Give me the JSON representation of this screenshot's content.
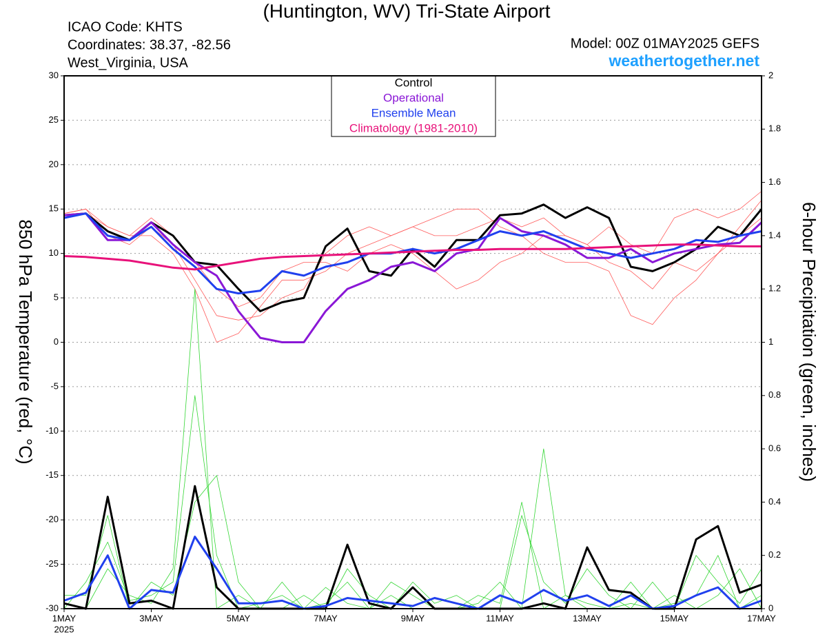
{
  "chart_data": {
    "type": "line",
    "title": "(Huntington, WV) Tri-State Airport",
    "annotations": [
      "ICAO Code: KHTS",
      "Coordinates: 38.37, -82.56",
      "West_Virginia, USA"
    ],
    "model": "Model: 00Z 01MAY2025 GEFS",
    "website": "weathertogether.net",
    "year_label": "2025",
    "ylabel": "850 hPa Temperature (red, °C)",
    "y2label": "6-hour Precipitation (green, inches)",
    "x": [
      1,
      1.5,
      2,
      2.5,
      3,
      3.5,
      4,
      4.5,
      5,
      5.5,
      6,
      6.5,
      7,
      7.5,
      8,
      8.5,
      9,
      9.5,
      10,
      10.5,
      11,
      11.5,
      12,
      12.5,
      13,
      13.5,
      14,
      14.5,
      15,
      15.5,
      16,
      16.5,
      17
    ],
    "xlim": [
      1,
      17
    ],
    "xticks": [
      {
        "value": 1,
        "label": "1MAY"
      },
      {
        "value": 3,
        "label": "3MAY"
      },
      {
        "value": 5,
        "label": "5MAY"
      },
      {
        "value": 7,
        "label": "7MAY"
      },
      {
        "value": 9,
        "label": "9MAY"
      },
      {
        "value": 11,
        "label": "11MAY"
      },
      {
        "value": 13,
        "label": "13MAY"
      },
      {
        "value": 15,
        "label": "15MAY"
      },
      {
        "value": 17,
        "label": "17MAY"
      }
    ],
    "ylim": [
      -30,
      30
    ],
    "yticks": [
      -30,
      -25,
      -20,
      -15,
      -10,
      -5,
      0,
      5,
      10,
      15,
      20,
      25,
      30
    ],
    "y2lim": [
      0,
      2
    ],
    "y2ticks": [
      0,
      0.2,
      0.4,
      0.6,
      0.8,
      1,
      1.2,
      1.4,
      1.6,
      1.8,
      2
    ],
    "grid": true,
    "series": [
      {
        "color": "#ff5a5a",
        "values": [
          14.5,
          15,
          12,
          11,
          13,
          11,
          7,
          3,
          2.5,
          3,
          5,
          6,
          10,
          12,
          13,
          12,
          13,
          12,
          12,
          13,
          14,
          13,
          14,
          12,
          11,
          9,
          8,
          6,
          9,
          8,
          10,
          13,
          16
        ]
      },
      {
        "color": "#ff5a5a",
        "values": [
          14,
          14.5,
          13,
          12,
          12,
          10,
          6,
          0,
          1,
          4,
          7,
          7,
          8,
          10,
          11,
          12,
          13,
          14,
          15,
          15,
          13,
          12,
          10,
          9,
          9,
          8,
          3,
          2,
          5,
          7,
          10,
          12,
          14
        ]
      },
      {
        "color": "#ff5a5a",
        "values": [
          14.5,
          15,
          13,
          12,
          14,
          12,
          9,
          6,
          4,
          5,
          8,
          9,
          9,
          8,
          10,
          11,
          10,
          8,
          6,
          7,
          9,
          10,
          12,
          12,
          11,
          13,
          11,
          10,
          14,
          15,
          14,
          15,
          17
        ]
      },
      {
        "color": "#33d633",
        "axis": "y2",
        "values": [
          0,
          0.1,
          0.25,
          0.03,
          0.05,
          0.1,
          0.8,
          0.2,
          0,
          0.02,
          0.05,
          0,
          0.02,
          0.1,
          0,
          0.05,
          0,
          0,
          0,
          0.02,
          0.1,
          0,
          0.6,
          0.05,
          0.02,
          0,
          0.1,
          0,
          0.02,
          0.05,
          0.2,
          0,
          0.05
        ]
      },
      {
        "color": "#33d633",
        "axis": "y2",
        "values": [
          0.05,
          0.05,
          0.35,
          0,
          0.1,
          0.05,
          0.4,
          0.5,
          0.1,
          0,
          0,
          0.05,
          0,
          0.15,
          0.05,
          0,
          0.1,
          0.02,
          0.05,
          0,
          0,
          0.35,
          0.1,
          0.02,
          0.15,
          0.05,
          0,
          0.1,
          0,
          0.2,
          0.1,
          0.02,
          0.15
        ]
      },
      {
        "color": "#33d633",
        "axis": "y2",
        "values": [
          0.02,
          0,
          0.15,
          0.05,
          0.02,
          0.15,
          1.2,
          0,
          0.05,
          0,
          0.1,
          0,
          0.08,
          0.02,
          0,
          0.1,
          0.05,
          0,
          0,
          0.05,
          0.02,
          0.4,
          0,
          0.05,
          0,
          0,
          0.02,
          0,
          0.05,
          0,
          0.05,
          0.15,
          0
        ]
      },
      {
        "color": "#000000",
        "axis": "y2",
        "values": [
          0.02,
          0,
          0.42,
          0.02,
          0.03,
          0,
          0.46,
          0.08,
          0,
          0,
          0,
          0,
          0,
          0.24,
          0.02,
          0,
          0.08,
          0,
          0,
          0,
          0,
          0,
          0.02,
          0,
          0.23,
          0.07,
          0.06,
          0,
          0,
          0.26,
          0.31,
          0.06,
          0.09
        ]
      },
      {
        "color": "#2040ee",
        "axis": "y2",
        "values": [
          0.03,
          0.06,
          0.2,
          0,
          0.07,
          0.06,
          0.27,
          0.15,
          0.02,
          0.02,
          0.03,
          0,
          0.01,
          0.04,
          0.03,
          0.02,
          0.01,
          0.04,
          0.02,
          0,
          0.05,
          0.02,
          0.07,
          0.03,
          0.05,
          0.01,
          0.05,
          0,
          0.01,
          0.05,
          0.08,
          0,
          0.03
        ]
      },
      {
        "name": "Control",
        "color": "#000000",
        "values": [
          14.3,
          14.5,
          12.5,
          11.5,
          13.5,
          12,
          9,
          8.7,
          6,
          3.5,
          4.5,
          5,
          10.8,
          12.8,
          8,
          7.5,
          10.5,
          8.5,
          11.5,
          11.5,
          14.3,
          14.5,
          15.5,
          14,
          15.2,
          14,
          8.5,
          8,
          9,
          10.5,
          13,
          12,
          15
        ]
      },
      {
        "name": "Operational",
        "color": "#8a17d6",
        "values": [
          14.3,
          14.5,
          11.5,
          11.5,
          13.5,
          11,
          9,
          7.5,
          3.5,
          0.5,
          0,
          0,
          3.5,
          6,
          7,
          8.5,
          9,
          8,
          10,
          10.5,
          14,
          12.5,
          12,
          11,
          9.5,
          9.5,
          10.5,
          9,
          10,
          10.5,
          11,
          11.2,
          13.5
        ]
      },
      {
        "name": "Ensemble Mean",
        "color": "#2040ee",
        "values": [
          14,
          14.5,
          12,
          11.5,
          13,
          10.5,
          8.5,
          6,
          5.5,
          5.8,
          8,
          7.5,
          8.5,
          9,
          10,
          10,
          10.5,
          10,
          10.5,
          11.5,
          12.5,
          12,
          12.5,
          11.5,
          10.5,
          10,
          9.5,
          10,
          10.5,
          11.5,
          11.3,
          12,
          12.5
        ]
      },
      {
        "name": "Climatology (1981-2010)",
        "color": "#e8127a",
        "values": [
          9.7,
          9.6,
          9.4,
          9.2,
          8.8,
          8.4,
          8.2,
          8.6,
          9,
          9.4,
          9.6,
          9.7,
          9.8,
          9.9,
          10,
          10.1,
          10.2,
          10.3,
          10.4,
          10.4,
          10.5,
          10.5,
          10.5,
          10.5,
          10.6,
          10.7,
          10.8,
          10.9,
          11,
          11,
          10.9,
          10.8,
          10.8
        ]
      }
    ]
  }
}
